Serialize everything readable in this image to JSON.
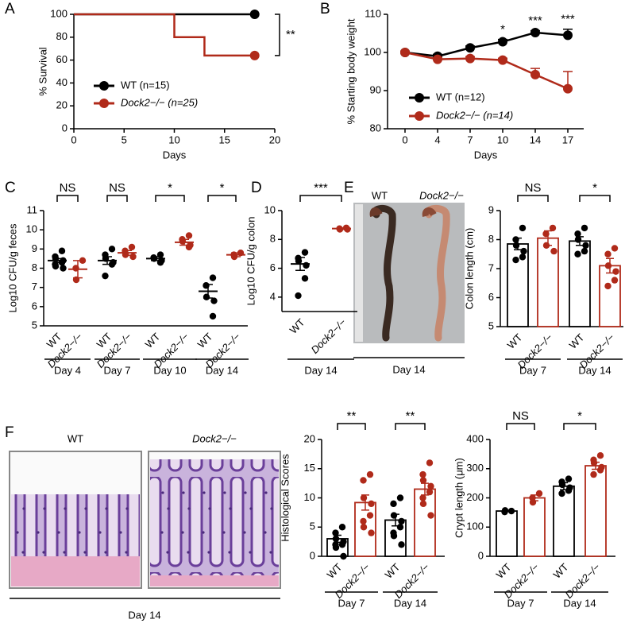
{
  "panel_labels": [
    "A",
    "B",
    "C",
    "D",
    "E",
    "F"
  ],
  "colon_image": {
    "labels": [
      "WT",
      "Dock2−/−"
    ],
    "day": "Day 14"
  },
  "histology_images": {
    "labels": [
      "WT",
      "Dock2−/−"
    ],
    "day": "Day 14"
  },
  "chart_data": [
    {
      "type": "step",
      "ylabel": "% Survival",
      "xlabel": "Days",
      "x": [
        0,
        10,
        13,
        18
      ],
      "xlim": [
        0,
        20
      ],
      "xticks": [
        0,
        5,
        10,
        15,
        20
      ],
      "ylim": [
        0,
        100
      ],
      "yticks": [
        0,
        20,
        40,
        60,
        80,
        100
      ],
      "series": [
        {
          "name": "WT (n=15)",
          "color": "#000000",
          "values": [
            100,
            100,
            100,
            100
          ]
        },
        {
          "name": "Dock2−/− (n=25)",
          "color": "#b02a1a",
          "values": [
            100,
            80,
            64,
            64
          ]
        }
      ],
      "significance": "**"
    },
    {
      "type": "line",
      "ylabel": "% Starting body weight",
      "xlabel": "Days",
      "categories": [
        "0",
        "4",
        "7",
        "10",
        "14",
        "17"
      ],
      "ylim": [
        80,
        110
      ],
      "yticks": [
        80,
        90,
        100,
        110
      ],
      "series": [
        {
          "name": "WT (n=12)",
          "color": "#000000",
          "values": [
            100,
            99,
            101.2,
            102.8,
            105.2,
            104.5
          ],
          "errors": [
            0.3,
            0.5,
            0.5,
            0.6,
            0.5,
            1.6
          ]
        },
        {
          "name": "Dock2−/− (n=14)",
          "color": "#b02a1a",
          "values": [
            100,
            98.2,
            98.4,
            98,
            94.2,
            90.5
          ],
          "errors": [
            0.3,
            0.5,
            0.5,
            0.5,
            1.6,
            4.5
          ]
        }
      ],
      "annotations": [
        null,
        null,
        null,
        "*",
        "***",
        "***"
      ]
    },
    {
      "type": "dotplot",
      "ylabel": "Log10 CFU/g feces",
      "ylim": [
        5,
        11
      ],
      "yticks": [
        5,
        6,
        7,
        8,
        9,
        10,
        11
      ],
      "bars": false,
      "groups": [
        {
          "label": "WT",
          "color": "#000000",
          "points": [
            8.9,
            8.6,
            8.5,
            8.4,
            8.3,
            8.2,
            8.1,
            8.0
          ],
          "mean": 8.4,
          "sem": 0.1
        },
        {
          "label": "Dock2−/−",
          "color": "#b02a1a",
          "points": [
            8.4,
            8.0,
            7.4
          ],
          "mean": 7.95,
          "sem": 0.45
        },
        {
          "label": "WT",
          "color": "#000000",
          "points": [
            9.0,
            8.7,
            8.5,
            8.3,
            8.2,
            7.6
          ],
          "mean": 8.4,
          "sem": 0.2
        },
        {
          "label": "Dock2−/−",
          "color": "#b02a1a",
          "points": [
            9.1,
            8.9,
            8.7,
            8.6
          ],
          "mean": 8.8,
          "sem": 0.12
        },
        {
          "label": "WT",
          "color": "#000000",
          "points": [
            8.7,
            8.55,
            8.5,
            8.4,
            8.3
          ],
          "mean": 8.5,
          "sem": 0.1
        },
        {
          "label": "Dock2−/−",
          "color": "#b02a1a",
          "points": [
            9.7,
            9.5,
            9.4,
            9.2,
            9.1
          ],
          "mean": 9.35,
          "sem": 0.15
        },
        {
          "label": "WT",
          "color": "#000000",
          "points": [
            7.5,
            7.1,
            6.5,
            6.3,
            5.5
          ],
          "mean": 6.8,
          "sem": 0.35
        },
        {
          "label": "Dock2−/−",
          "color": "#b02a1a",
          "points": [
            8.8,
            8.7,
            8.6
          ],
          "mean": 8.7,
          "sem": 0.1
        }
      ],
      "days": [
        "Day 4",
        "Day 7",
        "Day 10",
        "Day 14"
      ],
      "significance": [
        "NS",
        "NS",
        "*",
        "*"
      ]
    },
    {
      "type": "dotplot",
      "ylabel": "Log10 CFU/g colon",
      "ylim": [
        3,
        10
      ],
      "yticks": [
        4,
        6,
        8,
        10
      ],
      "bars": false,
      "groups": [
        {
          "label": "WT",
          "color": "#000000",
          "points": [
            7.1,
            6.7,
            6.5,
            6.2,
            5.3,
            4.1
          ],
          "mean": 6.3,
          "sem": 0.45
        },
        {
          "label": "Dock2−/−",
          "color": "#b02a1a",
          "points": [
            8.8,
            8.75,
            8.7,
            8.7
          ],
          "mean": 8.75,
          "sem": 0.05
        }
      ],
      "days": [
        "Day 14"
      ],
      "significance": [
        "***"
      ]
    },
    {
      "type": "dotplot",
      "ylabel": "Colon length (cm)",
      "ylim": [
        5,
        9
      ],
      "yticks": [
        5,
        6,
        7,
        8,
        9
      ],
      "bars": true,
      "groups": [
        {
          "label": "WT",
          "color": "#000000",
          "points": [
            8.4,
            8.0,
            7.8,
            7.6,
            7.4,
            7.3
          ],
          "mean": 7.85,
          "sem": 0.2
        },
        {
          "label": "Dock2−/−",
          "color": "#b02a1a",
          "points": [
            8.4,
            8.2,
            7.8,
            7.6
          ],
          "mean": 8.05,
          "sem": 0.25
        },
        {
          "label": "WT",
          "color": "#000000",
          "points": [
            8.4,
            8.2,
            8.0,
            7.8,
            7.6,
            7.5
          ],
          "mean": 7.95,
          "sem": 0.15
        },
        {
          "label": "Dock2−/−",
          "color": "#b02a1a",
          "points": [
            7.7,
            7.5,
            7.1,
            6.9,
            6.6,
            6.4
          ],
          "mean": 7.1,
          "sem": 0.25
        }
      ],
      "days": [
        "Day 7",
        "Day 14"
      ],
      "significance": [
        "NS",
        "*"
      ]
    },
    {
      "type": "dotplot",
      "ylabel": "Histological Scores",
      "ylim": [
        0,
        20
      ],
      "yticks": [
        0,
        5,
        10,
        15,
        20
      ],
      "bars": true,
      "groups": [
        {
          "label": "WT",
          "color": "#000000",
          "points": [
            5,
            4,
            3,
            2.5,
            2,
            2,
            1.5,
            0
          ],
          "mean": 3,
          "sem": 0.6
        },
        {
          "label": "Dock2−/−",
          "color": "#b02a1a",
          "points": [
            14,
            13,
            10,
            9,
            7,
            6,
            5,
            4
          ],
          "mean": 9.2,
          "sem": 1.3
        },
        {
          "label": "WT",
          "color": "#000000",
          "points": [
            10,
            9,
            7,
            6,
            5,
            4,
            3.5,
            2
          ],
          "mean": 6.2,
          "sem": 1
        },
        {
          "label": "Dock2−/−",
          "color": "#b02a1a",
          "points": [
            16,
            14,
            13,
            12,
            11,
            10,
            9,
            7
          ],
          "mean": 11.5,
          "sem": 1
        }
      ],
      "days": [
        "Day 7",
        "Day 14"
      ],
      "significance": [
        "**",
        "**"
      ]
    },
    {
      "type": "dotplot",
      "ylabel": "Crypt length (μm)",
      "ylim": [
        0,
        400
      ],
      "yticks": [
        0,
        100,
        200,
        300,
        400
      ],
      "bars": true,
      "groups": [
        {
          "label": "WT",
          "color": "#000000",
          "points": [
            155,
            152,
            157
          ],
          "mean": 155,
          "sem": 2
        },
        {
          "label": "Dock2−/−",
          "color": "#b02a1a",
          "points": [
            215,
            200,
            185
          ],
          "mean": 200,
          "sem": 10
        },
        {
          "label": "WT",
          "color": "#000000",
          "points": [
            265,
            255,
            245,
            235,
            225,
            215
          ],
          "mean": 240,
          "sem": 12
        },
        {
          "label": "Dock2−/−",
          "color": "#b02a1a",
          "points": [
            345,
            330,
            320,
            305,
            295,
            280
          ],
          "mean": 310,
          "sem": 12
        }
      ],
      "days": [
        "Day 7",
        "Day 14"
      ],
      "significance": [
        "NS",
        "*"
      ]
    }
  ]
}
